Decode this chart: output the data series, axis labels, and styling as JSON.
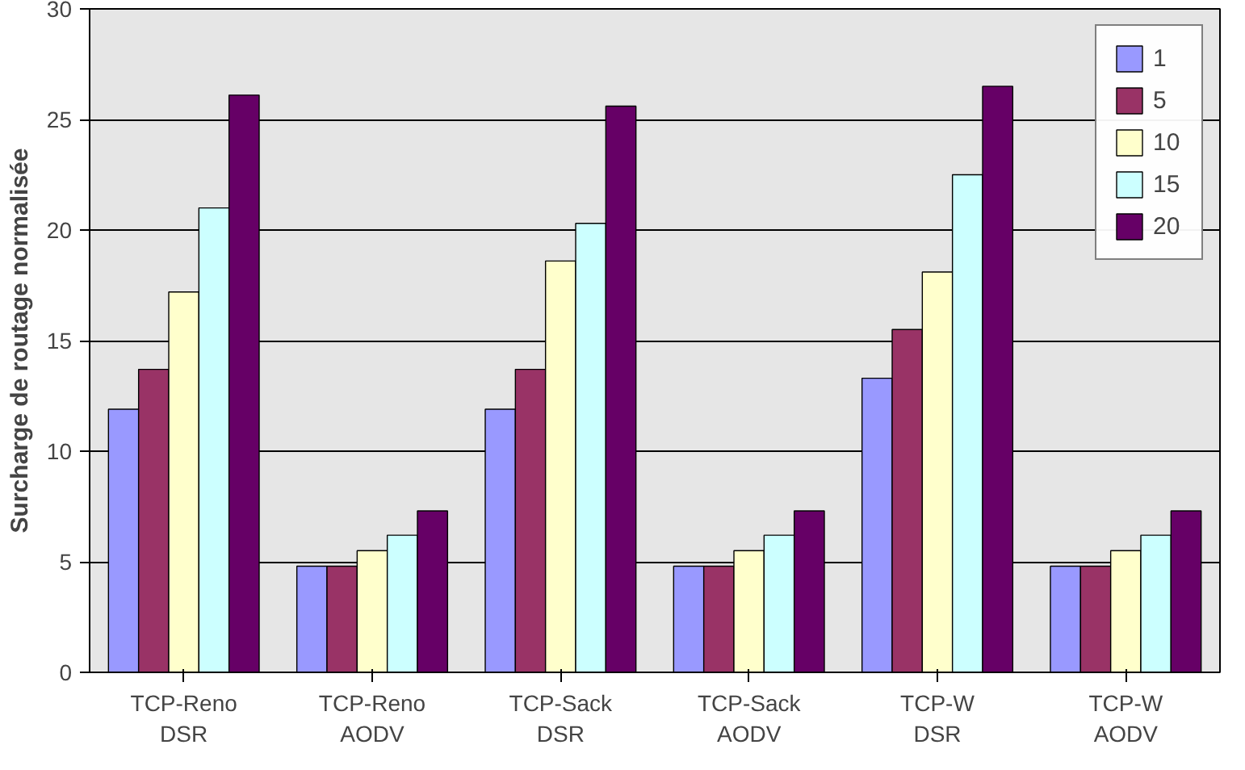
{
  "chart_data": {
    "type": "bar",
    "ylabel": "Surcharge de routage normalisée",
    "categories": [
      "TCP-Reno\nDSR",
      "TCP-Reno\nAODV",
      "TCP-Sack\nDSR",
      "TCP-Sack\nAODV",
      "TCP-W\nDSR",
      "TCP-W\nAODV"
    ],
    "series": [
      {
        "name": "1",
        "color": "#9999ff",
        "values": [
          11.9,
          4.8,
          11.9,
          4.8,
          13.3,
          4.8
        ]
      },
      {
        "name": "5",
        "color": "#993366",
        "values": [
          13.7,
          4.8,
          13.7,
          4.8,
          15.5,
          4.8
        ]
      },
      {
        "name": "10",
        "color": "#ffffcc",
        "values": [
          17.2,
          5.5,
          18.6,
          5.5,
          18.1,
          5.5
        ]
      },
      {
        "name": "15",
        "color": "#ccffff",
        "values": [
          21,
          6.2,
          20.3,
          6.2,
          22.5,
          6.2
        ]
      },
      {
        "name": "20",
        "color": "#660066",
        "values": [
          26.1,
          7.3,
          25.6,
          7.3,
          26.5,
          7.3
        ]
      }
    ],
    "ylim": [
      0,
      30
    ],
    "yticks": [
      0,
      5,
      10,
      15,
      20,
      25,
      30
    ],
    "grid": "y",
    "legend": "top right"
  }
}
